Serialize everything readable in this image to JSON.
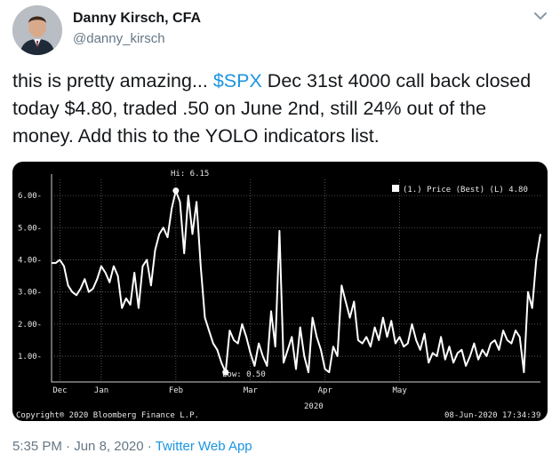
{
  "author": {
    "name": "Danny Kirsch, CFA",
    "handle": "@danny_kirsch"
  },
  "icons": {
    "avatar": "profile-photo",
    "menu": "chevron-down-icon"
  },
  "tweet": {
    "text_before": "this is pretty amazing... ",
    "cashtag": "$SPX",
    "text_after": " Dec 31st 4000 call back closed today $4.80, traded .50 on June 2nd, still 24% out of the money.  Add this to the YOLO indicators list."
  },
  "footer": {
    "time": "5:35 PM",
    "date": "Jun 8, 2020",
    "source": "Twitter Web App",
    "separator": "·"
  },
  "colors": {
    "link": "#1b95e0",
    "chart_bg": "#000000",
    "line": "#ffffff",
    "secondary_text": "#657786"
  },
  "chart_data": {
    "type": "line",
    "legend": "(1.) Price (Best) (L) 4.80",
    "legend_position": "top-right",
    "high_label": "Hi: 6.15",
    "low_label": "Low: 0.50",
    "year_label": "2020",
    "copyright": "Copyright® 2020 Bloomberg Finance L.P.",
    "timestamp": "08-Jun-2020 17:34:39",
    "y_ticks": [
      "1.00",
      "2.00",
      "3.00",
      "4.00",
      "5.00",
      "6.00"
    ],
    "y_tick_values": [
      1,
      2,
      3,
      4,
      5,
      6
    ],
    "ylim": [
      0.2,
      6.5
    ],
    "x_ticks": [
      "Dec",
      "Jan",
      "Feb",
      "Mar",
      "Apr",
      "May"
    ],
    "x_tick_index": [
      2,
      12,
      30,
      48,
      66,
      84
    ],
    "grid": true,
    "series": [
      {
        "values": [
          3.9,
          3.9,
          4.0,
          3.8,
          3.2,
          3.0,
          2.9,
          3.1,
          3.4,
          3.0,
          3.1,
          3.4,
          3.8,
          3.6,
          3.3,
          3.8,
          3.5,
          2.5,
          2.8,
          2.6,
          3.6,
          2.5,
          3.8,
          4.0,
          3.2,
          4.3,
          4.8,
          5.0,
          4.7,
          5.6,
          6.15,
          5.8,
          4.2,
          6.0,
          4.8,
          5.8,
          3.8,
          2.2,
          1.8,
          1.4,
          1.2,
          0.8,
          0.5,
          1.8,
          1.5,
          1.4,
          2.0,
          1.6,
          1.1,
          0.7,
          1.4,
          1.0,
          0.7,
          2.4,
          1.3,
          4.9,
          0.8,
          1.2,
          1.6,
          0.6,
          1.9,
          1.0,
          0.5,
          2.2,
          1.6,
          1.2,
          0.6,
          0.5,
          1.3,
          1.0,
          3.2,
          2.7,
          2.2,
          2.7,
          1.5,
          1.4,
          1.6,
          1.3,
          1.9,
          1.5,
          2.2,
          1.6,
          2.1,
          1.4,
          1.6,
          1.3,
          1.4,
          2.0,
          1.5,
          1.2,
          1.7,
          0.8,
          1.1,
          1.0,
          1.6,
          0.9,
          1.3,
          0.8,
          1.1,
          1.2,
          0.7,
          1.0,
          1.4,
          0.9,
          1.2,
          1.0,
          1.4,
          1.5,
          1.2,
          1.8,
          1.5,
          1.4,
          1.8,
          1.6,
          0.5,
          3.0,
          2.5,
          4.0,
          4.8
        ]
      }
    ]
  }
}
